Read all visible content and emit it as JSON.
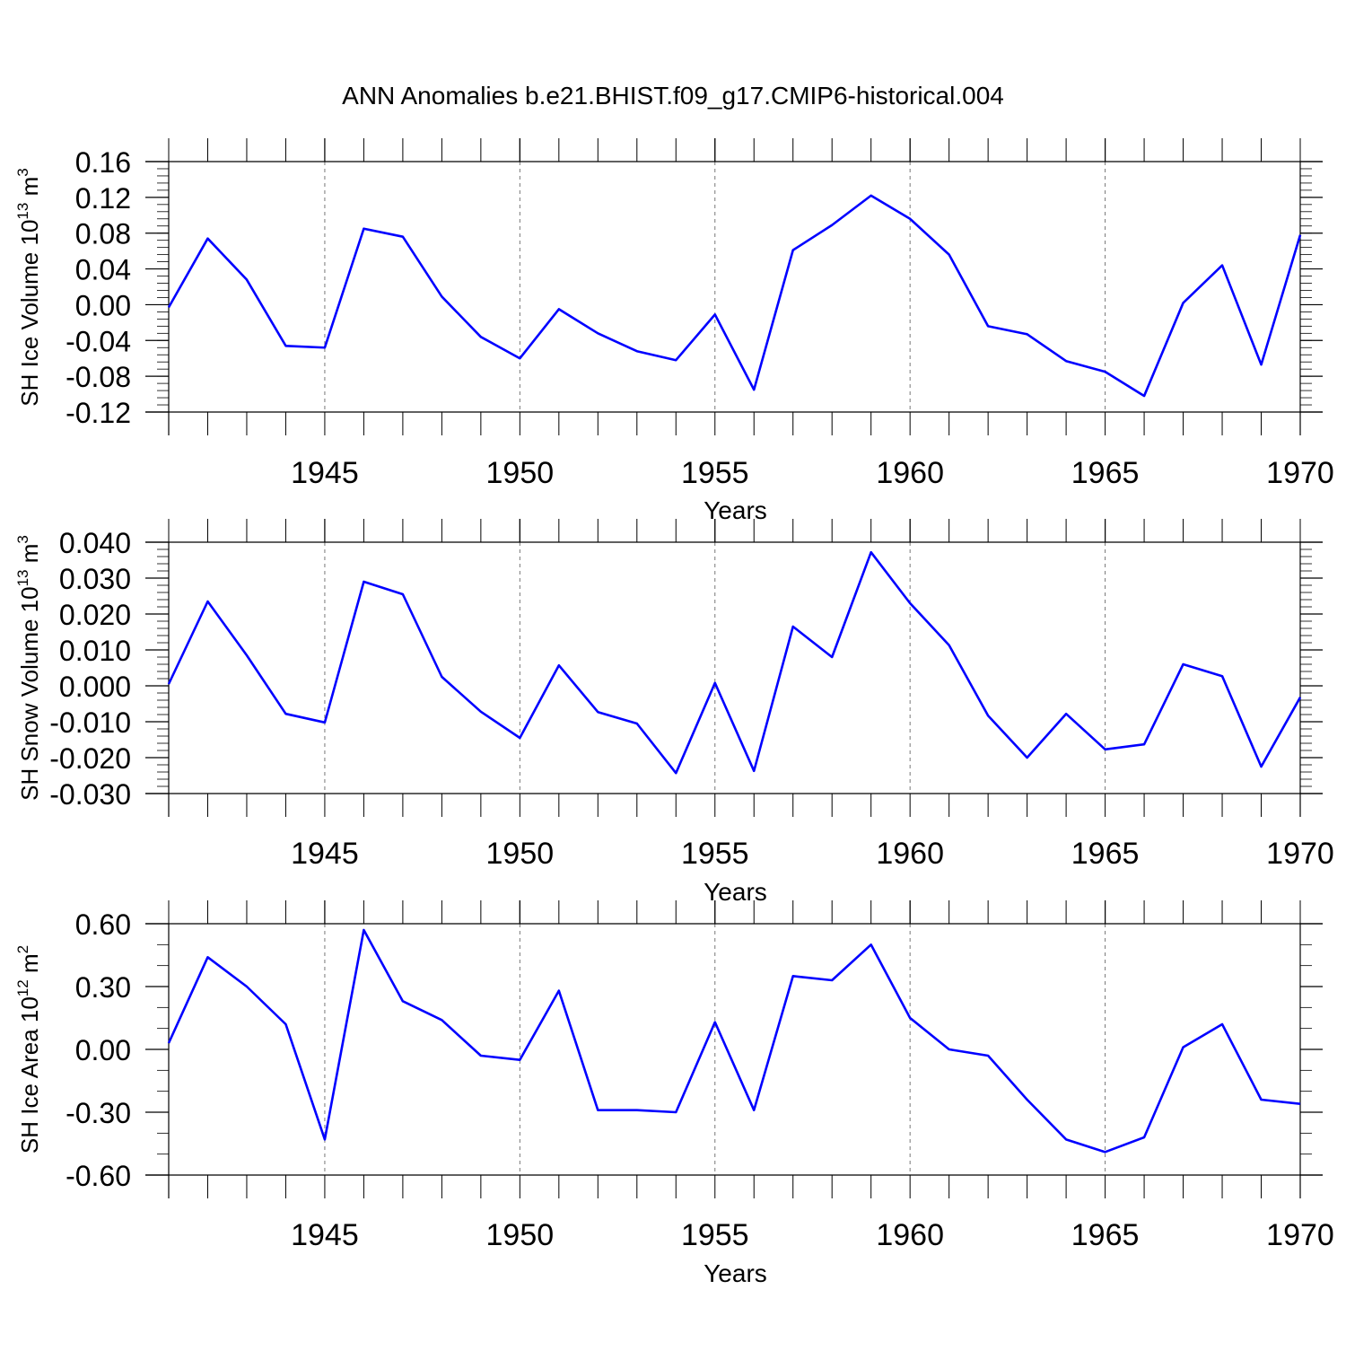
{
  "figure": {
    "title": "ANN Anomalies b.e21.BHIST.f09_g17.CMIP6-historical.004",
    "line_color": "#0000ff"
  },
  "chart_data": [
    {
      "type": "line",
      "title": "",
      "xlabel": "Years",
      "ylabel_text": "SH Ice Volume 10",
      "ylabel_exp": "13",
      "ylabel_unit": " m",
      "ylabel_unit_exp": "3",
      "xlim": [
        1941,
        1970
      ],
      "ylim": [
        -0.12,
        0.16
      ],
      "x_ticks": [
        1945,
        1950,
        1955,
        1960,
        1965,
        1970
      ],
      "x_tick_labels": [
        "1945",
        "1950",
        "1955",
        "1960",
        "1965",
        "1970"
      ],
      "y_ticks": [
        -0.12,
        -0.08,
        -0.04,
        0.0,
        0.04,
        0.08,
        0.12,
        0.16
      ],
      "y_tick_labels": [
        "-0.12",
        "-0.08",
        "-0.04",
        "0.00",
        "0.04",
        "0.08",
        "0.12",
        "0.16"
      ],
      "y_minor_step": 0.008,
      "x": [
        1941,
        1942,
        1943,
        1944,
        1945,
        1946,
        1947,
        1948,
        1949,
        1950,
        1951,
        1952,
        1953,
        1954,
        1955,
        1956,
        1957,
        1958,
        1959,
        1960,
        1961,
        1962,
        1963,
        1964,
        1965,
        1966,
        1967,
        1968,
        1969,
        1970
      ],
      "series": [
        {
          "name": "SH Ice Volume",
          "values": [
            -0.003,
            0.074,
            0.028,
            -0.046,
            -0.048,
            0.085,
            0.076,
            0.009,
            -0.036,
            -0.06,
            -0.005,
            -0.032,
            -0.052,
            -0.062,
            -0.011,
            -0.095,
            0.061,
            0.089,
            0.122,
            0.096,
            0.056,
            -0.024,
            -0.033,
            -0.063,
            -0.075,
            -0.102,
            0.002,
            0.044,
            -0.067,
            0.078
          ]
        }
      ],
      "vgrid_dashed": [
        1945,
        1950,
        1955,
        1960,
        1965
      ]
    },
    {
      "type": "line",
      "title": "",
      "xlabel": "Years",
      "ylabel_text": "SH Snow Volume 10",
      "ylabel_exp": "13",
      "ylabel_unit": " m",
      "ylabel_unit_exp": "3",
      "xlim": [
        1941,
        1970
      ],
      "ylim": [
        -0.03,
        0.04
      ],
      "x_ticks": [
        1945,
        1950,
        1955,
        1960,
        1965,
        1970
      ],
      "x_tick_labels": [
        "1945",
        "1950",
        "1955",
        "1960",
        "1965",
        "1970"
      ],
      "y_ticks": [
        -0.03,
        -0.02,
        -0.01,
        0.0,
        0.01,
        0.02,
        0.03,
        0.04
      ],
      "y_tick_labels": [
        "-0.030",
        "-0.020",
        "-0.010",
        "0.000",
        "0.010",
        "0.020",
        "0.030",
        "0.040"
      ],
      "y_minor_step": 0.002,
      "x": [
        1941,
        1942,
        1943,
        1944,
        1945,
        1946,
        1947,
        1948,
        1949,
        1950,
        1951,
        1952,
        1953,
        1954,
        1955,
        1956,
        1957,
        1958,
        1959,
        1960,
        1961,
        1962,
        1963,
        1964,
        1965,
        1966,
        1967,
        1968,
        1969,
        1970
      ],
      "series": [
        {
          "name": "SH Snow Volume",
          "values": [
            0.0005,
            0.0235,
            0.0085,
            -0.0078,
            -0.0102,
            0.029,
            0.0255,
            0.0025,
            -0.0072,
            -0.0145,
            0.0057,
            -0.0073,
            -0.0105,
            -0.0243,
            0.0008,
            -0.0237,
            0.0165,
            0.008,
            0.0372,
            0.023,
            0.0113,
            -0.0083,
            -0.02,
            -0.0078,
            -0.0177,
            -0.0163,
            0.006,
            0.0027,
            -0.0225,
            -0.0032
          ]
        }
      ],
      "vgrid_dashed": [
        1945,
        1950,
        1955,
        1960,
        1965
      ]
    },
    {
      "type": "line",
      "title": "",
      "xlabel": "Years",
      "ylabel_text": "SH Ice Area 10",
      "ylabel_exp": "12",
      "ylabel_unit": " m",
      "ylabel_unit_exp": "2",
      "xlim": [
        1941,
        1970
      ],
      "ylim": [
        -0.6,
        0.6
      ],
      "x_ticks": [
        1945,
        1950,
        1955,
        1960,
        1965,
        1970
      ],
      "x_tick_labels": [
        "1945",
        "1950",
        "1955",
        "1960",
        "1965",
        "1970"
      ],
      "y_ticks": [
        -0.6,
        -0.3,
        0.0,
        0.3,
        0.6
      ],
      "y_tick_labels": [
        "-0.60",
        "-0.30",
        "0.00",
        "0.30",
        "0.60"
      ],
      "y_minor_step": 0.1,
      "x": [
        1941,
        1942,
        1943,
        1944,
        1945,
        1946,
        1947,
        1948,
        1949,
        1950,
        1951,
        1952,
        1953,
        1954,
        1955,
        1956,
        1957,
        1958,
        1959,
        1960,
        1961,
        1962,
        1963,
        1964,
        1965,
        1966,
        1967,
        1968,
        1969,
        1970
      ],
      "series": [
        {
          "name": "SH Ice Area",
          "values": [
            0.03,
            0.44,
            0.3,
            0.12,
            -0.43,
            0.57,
            0.23,
            0.14,
            -0.03,
            -0.05,
            0.28,
            -0.29,
            -0.29,
            -0.3,
            0.13,
            -0.29,
            0.35,
            0.33,
            0.5,
            0.15,
            0.0,
            -0.03,
            -0.24,
            -0.43,
            -0.49,
            -0.42,
            0.01,
            0.12,
            -0.24,
            -0.26
          ]
        }
      ],
      "vgrid_dashed": [
        1945,
        1950,
        1955,
        1960,
        1965
      ]
    }
  ]
}
